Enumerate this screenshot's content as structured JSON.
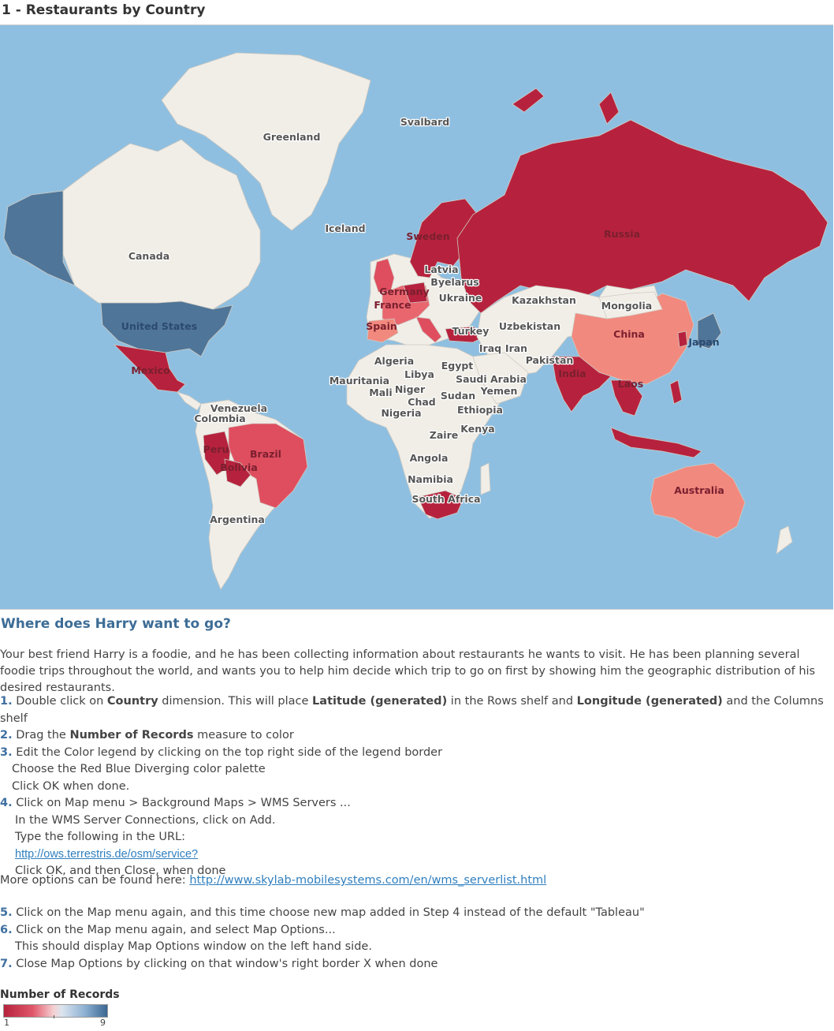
{
  "sheet_title": "1 - Restaurants by Country",
  "map": {
    "country_labels": [
      "Greenland",
      "Svalbard",
      "Iceland",
      "Canada",
      "United States",
      "Mexico",
      "Venezuela",
      "Colombia",
      "Peru",
      "Brazil",
      "Bolivia",
      "Argentina",
      "Sweden",
      "Latvia",
      "Byelarus",
      "Ukraine",
      "Germany",
      "France",
      "Spain",
      "Turkey",
      "Kazakhstan",
      "Mongolia",
      "Russia",
      "China",
      "Japan",
      "Uzbekistan",
      "Iraq",
      "Iran",
      "Pakistan",
      "India",
      "Laos",
      "Algeria",
      "Libya",
      "Egypt",
      "Saudi Arabia",
      "Mauritania",
      "Mali",
      "Niger",
      "Chad",
      "Sudan",
      "Yemen",
      "Nigeria",
      "Ethiopia",
      "Kenya",
      "Zaire",
      "Angola",
      "Namibia",
      "South Africa",
      "Australia"
    ],
    "colors": {
      "ocean": "#8fbfe0",
      "land": "#f1eee8",
      "record_1": "#b6223d",
      "record_mid": "#f2897e",
      "record_9": "#4f7598"
    }
  },
  "section_title": "Where does Harry want to go?",
  "intro": "Your best friend Harry is a foodie, and he has been collecting information about restaurants he wants to visit. He has been planning several foodie trips throughout the world, and wants you to help him decide which trip to go on first by showing him the geographic distribution of his desired restaurants.",
  "steps": {
    "s1": {
      "num": "1.",
      "a": "Double click on ",
      "b": "Country",
      "c": " dimension. This will place ",
      "d": "Latitude (generated)",
      "e": " in the Rows shelf and ",
      "f": "Longitude (generated)",
      "g": " and the Columns shelf"
    },
    "s2": {
      "num": "2.",
      "a": "Drag the ",
      "b": "Number of Records",
      "c": " measure to color"
    },
    "s3": {
      "num": "3.",
      "a": "Edit the Color legend by clicking on the top right side of the legend border",
      "l2": "Choose the Red Blue Diverging color palette",
      "l3": "Click OK when done."
    },
    "s4": {
      "num": "4.",
      "a": "Click on Map menu > Background Maps > WMS Servers ...",
      "l2": "In the WMS Server Connections, click on Add.",
      "l3": "Type the following in the URL:",
      "url": "http://ows.terrestris.de/osm/service?",
      "l5": "Click OK, and then Close, when done"
    },
    "more_prefix": "More options can be found here: ",
    "more_url": "http://www.skylab-mobilesystems.com/en/wms_serverlist.html",
    "s5": {
      "num": "5.",
      "a": "Click on the Map menu again, and this time choose new map added in Step 4 instead of the default \"Tableau\""
    },
    "s6": {
      "num": "6.",
      "a": "Click on the Map menu again, and select Map Options...",
      "l2": "This should display Map Options window on the left hand side."
    },
    "s7": {
      "num": "7.",
      "a": "Close Map Options by clicking on that window's right border X when done"
    }
  },
  "legend": {
    "title": "Number of Records",
    "min": "1",
    "max": "9"
  }
}
